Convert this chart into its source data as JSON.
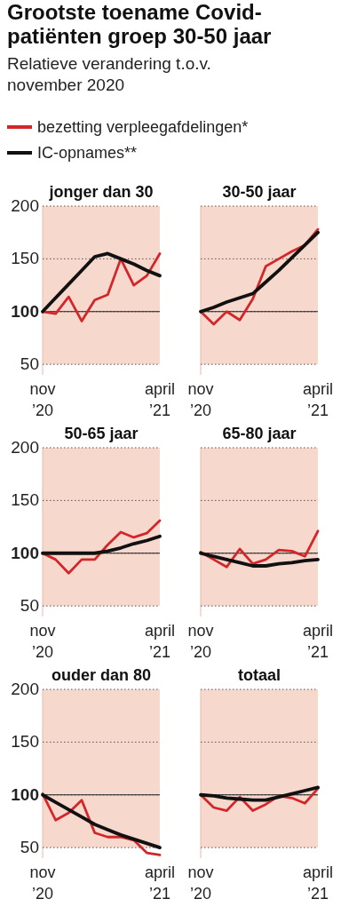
{
  "chart_data": [
    {
      "type": "other",
      "title": "Grootste toename Covid-patiënten groep 30-50 jaar",
      "subtitle": "Relatieve verandering t.o.v. november 2020"
    },
    {
      "type": "line",
      "title": "jonger dan 30",
      "legend": "top",
      "categories": [
        "nov\n’20",
        null,
        null,
        null,
        null,
        null,
        null,
        null,
        null,
        "april\n’21"
      ],
      "ylim": [
        40,
        200
      ],
      "yticks": [
        50,
        100,
        150,
        200
      ],
      "grid": "y",
      "bands": [
        {
          "axis": "y",
          "from": 50,
          "to": 200,
          "color": "#f7d8cd"
        }
      ],
      "ref_lines": [
        {
          "axis": "y",
          "value": 100,
          "color": "#222222"
        }
      ],
      "series": [
        {
          "name": "bezetting verpleegafdelingen*",
          "color": "#d3262b",
          "values": [
            100,
            98,
            114,
            91,
            111,
            116,
            150,
            125,
            134,
            155
          ]
        },
        {
          "name": "IC-opnames**",
          "color": "#111111",
          "values": [
            100,
            113,
            126,
            139,
            152,
            155,
            150,
            145,
            139,
            134
          ]
        }
      ]
    },
    {
      "type": "line",
      "title": "30-50 jaar",
      "tick_labels": "x",
      "categories": [
        "nov\n’20",
        null,
        null,
        null,
        null,
        null,
        null,
        null,
        null,
        "april\n’21"
      ],
      "ylim": [
        40,
        200
      ],
      "yticks": [
        50,
        100,
        150,
        200
      ],
      "grid": "y",
      "bands": [
        {
          "axis": "y",
          "from": 50,
          "to": 200,
          "color": "#f7d8cd"
        }
      ],
      "ref_lines": [
        {
          "axis": "y",
          "value": 100,
          "color": "#222222"
        }
      ],
      "series": [
        {
          "color": "#d3262b",
          "values": [
            100,
            88,
            100,
            92,
            112,
            143,
            150,
            157,
            163,
            178
          ]
        },
        {
          "color": "#111111",
          "values": [
            100,
            104,
            109,
            113,
            117,
            128,
            139,
            151,
            163,
            175
          ]
        }
      ]
    },
    {
      "type": "line",
      "title": "50-65 jaar",
      "categories": [
        "nov\n’20",
        null,
        null,
        null,
        null,
        null,
        null,
        null,
        null,
        "april\n’21"
      ],
      "ylim": [
        40,
        200
      ],
      "yticks": [
        50,
        100,
        150,
        200
      ],
      "grid": "y",
      "bands": [
        {
          "axis": "y",
          "from": 50,
          "to": 200,
          "color": "#f7d8cd"
        }
      ],
      "ref_lines": [
        {
          "axis": "y",
          "value": 100,
          "color": "#222222"
        }
      ],
      "series": [
        {
          "color": "#d3262b",
          "values": [
            100,
            94,
            81,
            94,
            94,
            108,
            120,
            115,
            119,
            131
          ]
        },
        {
          "color": "#111111",
          "values": [
            100,
            100,
            100,
            100,
            100,
            102,
            105,
            109,
            112,
            116
          ]
        }
      ]
    },
    {
      "type": "line",
      "title": "65-80 jaar",
      "tick_labels": "x",
      "categories": [
        "nov\n’20",
        null,
        null,
        null,
        null,
        null,
        null,
        null,
        null,
        "april\n’21"
      ],
      "ylim": [
        40,
        200
      ],
      "yticks": [
        50,
        100,
        150,
        200
      ],
      "grid": "y",
      "bands": [
        {
          "axis": "y",
          "from": 50,
          "to": 200,
          "color": "#f7d8cd"
        }
      ],
      "ref_lines": [
        {
          "axis": "y",
          "value": 100,
          "color": "#222222"
        }
      ],
      "series": [
        {
          "color": "#d3262b",
          "values": [
            101,
            94,
            87,
            104,
            90,
            94,
            103,
            102,
            97,
            121
          ]
        },
        {
          "color": "#111111",
          "values": [
            100,
            97,
            94,
            91,
            88,
            88,
            90,
            91,
            93,
            94
          ]
        }
      ]
    },
    {
      "type": "line",
      "title": "ouder dan 80",
      "categories": [
        "nov\n’20",
        null,
        null,
        null,
        null,
        null,
        null,
        null,
        null,
        "april\n’21"
      ],
      "ylim": [
        40,
        200
      ],
      "yticks": [
        50,
        100,
        150,
        200
      ],
      "grid": "y",
      "bands": [
        {
          "axis": "y",
          "from": 50,
          "to": 200,
          "color": "#f7d8cd"
        }
      ],
      "ref_lines": [
        {
          "axis": "y",
          "value": 100,
          "color": "#222222"
        }
      ],
      "series": [
        {
          "color": "#d3262b",
          "values": [
            101,
            76,
            83,
            95,
            64,
            60,
            60,
            57,
            45,
            43
          ]
        },
        {
          "color": "#111111",
          "values": [
            100,
            93,
            86,
            79,
            72,
            67,
            62,
            58,
            54,
            50
          ]
        }
      ]
    },
    {
      "type": "line",
      "title": "totaal",
      "tick_labels": "x",
      "categories": [
        "nov\n’20",
        null,
        null,
        null,
        null,
        null,
        null,
        null,
        null,
        "april\n’21"
      ],
      "ylim": [
        40,
        200
      ],
      "yticks": [
        50,
        100,
        150,
        200
      ],
      "grid": "y",
      "bands": [
        {
          "axis": "y",
          "from": 50,
          "to": 200,
          "color": "#f7d8cd"
        }
      ],
      "ref_lines": [
        {
          "axis": "y",
          "value": 100,
          "color": "#222222"
        }
      ],
      "series": [
        {
          "color": "#d3262b",
          "values": [
            100,
            88,
            85,
            98,
            85,
            91,
            99,
            97,
            92,
            106
          ]
        },
        {
          "color": "#111111",
          "values": [
            100,
            99,
            97,
            96,
            95,
            95,
            98,
            101,
            104,
            107
          ]
        }
      ]
    }
  ]
}
